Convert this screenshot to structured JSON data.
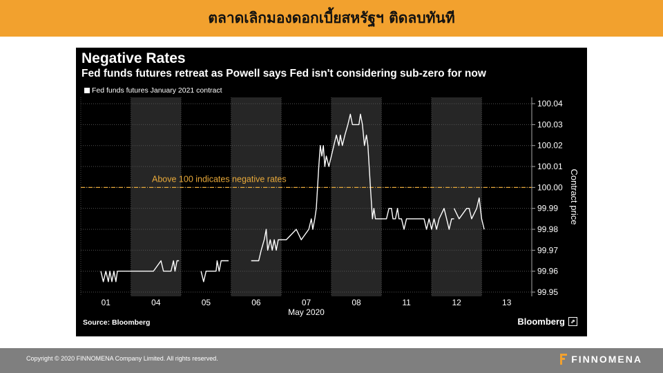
{
  "header": {
    "title": "ตลาดเลิกมองดอกเบี้ยสหรัฐฯ ติดลบทันที"
  },
  "chart_data": {
    "type": "line",
    "title": "Negative Rates",
    "subtitle": "Fed funds futures retreat as Powell says Fed isn't considering sub-zero for now",
    "legend": [
      "Fed funds futures January 2021 contract"
    ],
    "legend_position": "top-left",
    "xlabel": "May 2020",
    "ylabel": "Contract price",
    "x_tick_labels": [
      "01",
      "04",
      "05",
      "06",
      "07",
      "08",
      "11",
      "12",
      "13"
    ],
    "y_ticks": [
      99.95,
      99.96,
      99.97,
      99.98,
      99.99,
      100.0,
      100.01,
      100.02,
      100.03,
      100.04
    ],
    "y_tick_labels": [
      "99.95",
      "99.96",
      "99.97",
      "99.98",
      "99.99",
      "100.00",
      "100.01",
      "100.02",
      "100.03",
      "100.04"
    ],
    "ylim": [
      99.948,
      100.043
    ],
    "xlim": [
      0,
      9
    ],
    "grid": true,
    "shaded_day_indices": [
      1,
      3,
      5,
      7
    ],
    "reference_line": {
      "value": 100.0,
      "label": "Above 100 indicates negative rates",
      "color": "#e8a93a"
    },
    "series": [
      {
        "name": "Fed funds futures January 2021 contract",
        "color": "#ffffff",
        "segments": [
          [
            [
              0.4,
              99.96
            ],
            [
              0.45,
              99.955
            ],
            [
              0.5,
              99.96
            ],
            [
              0.55,
              99.955
            ],
            [
              0.58,
              99.96
            ],
            [
              0.62,
              99.955
            ],
            [
              0.66,
              99.96
            ],
            [
              0.7,
              99.955
            ],
            [
              0.73,
              99.96
            ],
            [
              1.0,
              99.96
            ],
            [
              1.45,
              99.96
            ],
            [
              1.6,
              99.965
            ],
            [
              1.65,
              99.96
            ],
            [
              1.8,
              99.96
            ],
            [
              1.85,
              99.965
            ],
            [
              1.88,
              99.96
            ],
            [
              1.92,
              99.965
            ],
            [
              1.96,
              99.965
            ]
          ],
          [
            [
              2.4,
              99.96
            ],
            [
              2.45,
              99.955
            ],
            [
              2.5,
              99.96
            ],
            [
              2.7,
              99.96
            ],
            [
              2.72,
              99.965
            ],
            [
              2.76,
              99.96
            ],
            [
              2.8,
              99.965
            ],
            [
              2.95,
              99.965
            ]
          ],
          [
            [
              3.4,
              99.965
            ],
            [
              3.55,
              99.965
            ],
            [
              3.6,
              99.97
            ],
            [
              3.66,
              99.975
            ],
            [
              3.7,
              99.98
            ],
            [
              3.73,
              99.97
            ],
            [
              3.78,
              99.975
            ],
            [
              3.82,
              99.97
            ],
            [
              3.86,
              99.975
            ],
            [
              3.9,
              99.97
            ],
            [
              3.94,
              99.975
            ],
            [
              4.1,
              99.975
            ],
            [
              4.3,
              99.98
            ],
            [
              4.4,
              99.975
            ],
            [
              4.55,
              99.98
            ],
            [
              4.6,
              99.985
            ],
            [
              4.63,
              99.98
            ],
            [
              4.67,
              99.985
            ],
            [
              4.7,
              99.99
            ],
            [
              4.75,
              100.01
            ],
            [
              4.78,
              100.02
            ],
            [
              4.81,
              100.015
            ],
            [
              4.84,
              100.02
            ],
            [
              4.87,
              100.01
            ],
            [
              4.9,
              100.015
            ],
            [
              4.95,
              100.01
            ],
            [
              5.0,
              100.015
            ],
            [
              5.1,
              100.025
            ],
            [
              5.15,
              100.02
            ],
            [
              5.18,
              100.025
            ],
            [
              5.22,
              100.02
            ],
            [
              5.27,
              100.025
            ],
            [
              5.33,
              100.03
            ],
            [
              5.38,
              100.035
            ],
            [
              5.42,
              100.03
            ],
            [
              5.55,
              100.03
            ],
            [
              5.58,
              100.035
            ],
            [
              5.62,
              100.03
            ],
            [
              5.66,
              100.02
            ],
            [
              5.7,
              100.025
            ],
            [
              5.73,
              100.02
            ],
            [
              5.78,
              100.0
            ],
            [
              5.82,
              99.985
            ],
            [
              5.85,
              99.99
            ],
            [
              5.88,
              99.985
            ],
            [
              6.0,
              99.985
            ],
            [
              6.1,
              99.985
            ],
            [
              6.15,
              99.99
            ],
            [
              6.2,
              99.99
            ],
            [
              6.23,
              99.985
            ],
            [
              6.28,
              99.985
            ],
            [
              6.32,
              99.99
            ],
            [
              6.35,
              99.985
            ],
            [
              6.4,
              99.985
            ],
            [
              6.45,
              99.98
            ],
            [
              6.5,
              99.985
            ],
            [
              6.6,
              99.985
            ],
            [
              6.85,
              99.985
            ],
            [
              6.9,
              99.98
            ],
            [
              6.95,
              99.985
            ],
            [
              7.0,
              99.98
            ],
            [
              7.05,
              99.985
            ],
            [
              7.1,
              99.98
            ],
            [
              7.15,
              99.985
            ],
            [
              7.25,
              99.99
            ],
            [
              7.3,
              99.985
            ],
            [
              7.35,
              99.98
            ],
            [
              7.4,
              99.985
            ],
            [
              7.45,
              99.985
            ]
          ],
          [
            [
              7.45,
              99.99
            ],
            [
              7.55,
              99.985
            ],
            [
              7.7,
              99.99
            ],
            [
              7.75,
              99.99
            ],
            [
              7.8,
              99.985
            ],
            [
              7.9,
              99.99
            ],
            [
              7.95,
              99.995
            ],
            [
              8.0,
              99.985
            ],
            [
              8.05,
              99.98
            ]
          ]
        ]
      }
    ]
  },
  "chart_footer": {
    "source": "Source: Bloomberg",
    "brand": "Bloomberg"
  },
  "footer": {
    "copyright": "Copyright © 2020 FINNOMENA Company Limited. All rights reserved.",
    "brand": "FINNOMENA"
  }
}
